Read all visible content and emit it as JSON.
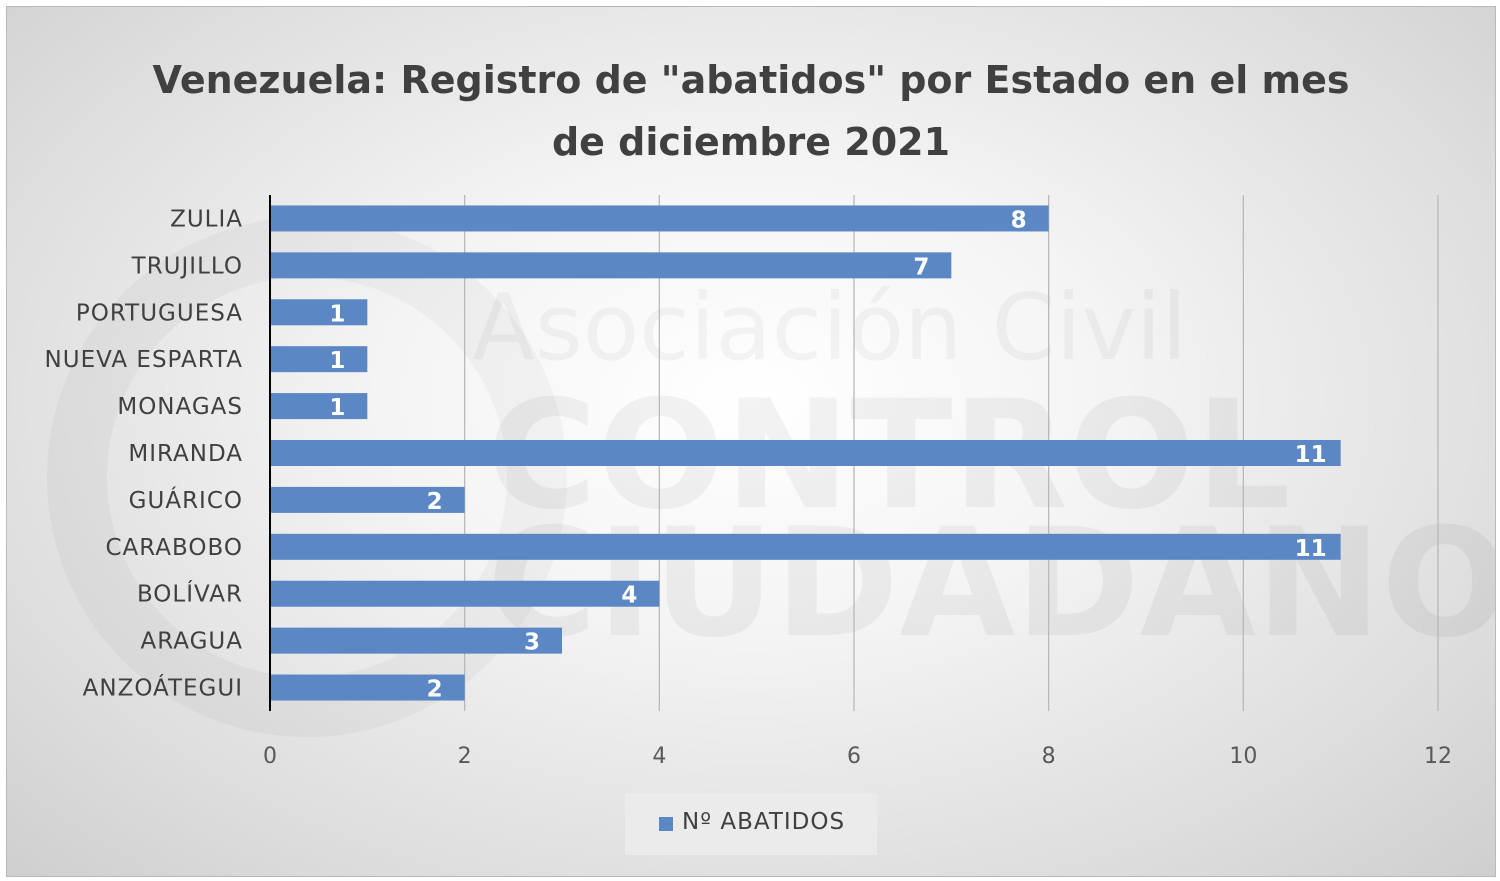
{
  "chart_data": {
    "type": "bar",
    "orientation": "horizontal",
    "title_lines": [
      "Venezuela: Registro de \"abatidos\" por Estado en el mes",
      "de diciembre 2021"
    ],
    "categories": [
      "ZULIA",
      "TRUJILLO",
      "PORTUGUESA",
      "NUEVA ESPARTA",
      "MONAGAS",
      "MIRANDA",
      "GUÁRICO",
      "CARABOBO",
      "BOLÍVAR",
      "ARAGUA",
      "ANZOÁTEGUI"
    ],
    "series": [
      {
        "name": "Nº ABATIDOS",
        "values": [
          8,
          7,
          1,
          1,
          1,
          11,
          2,
          11,
          4,
          3,
          2
        ],
        "color": "#5b87c5"
      }
    ],
    "xlim": [
      0,
      12
    ],
    "xticks": [
      0,
      2,
      4,
      6,
      8,
      10,
      12
    ],
    "grid": true,
    "legend_position": "bottom",
    "data_labels": true
  },
  "watermark": {
    "line1": "Asociación Civil",
    "line2": "CONTROL",
    "line3": "CIUDADANO"
  }
}
